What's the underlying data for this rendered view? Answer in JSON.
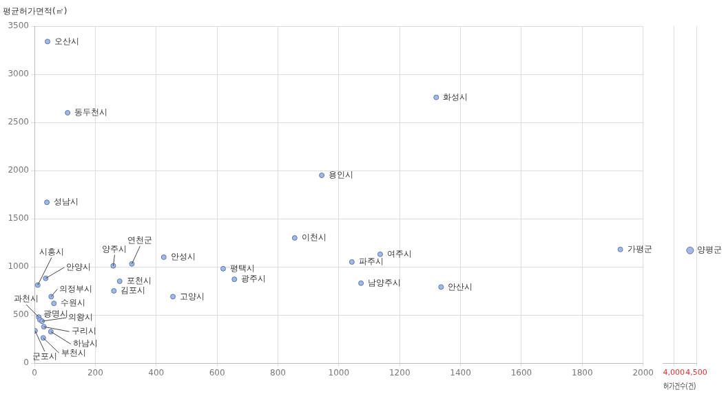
{
  "chart_data": [
    {
      "type": "scatter",
      "ylabel": "평균허가면적(㎡)",
      "xlim": [
        0,
        2000
      ],
      "xticks": [
        0,
        200,
        400,
        600,
        800,
        1000,
        1200,
        1400,
        1600,
        1800,
        2000
      ],
      "ylim": [
        0,
        3500
      ],
      "yticks": [
        0,
        500,
        1000,
        1500,
        2000,
        2500,
        3000,
        3500
      ],
      "grid": true,
      "legend": false,
      "marker": "circle",
      "series": [
        {
          "color": "#a3b8e0",
          "x": [
            43,
            109,
            41,
            944,
            1320,
            855,
            1136,
            1043,
            1073,
            1336,
            1925,
            620,
            657,
            425,
            455,
            259,
            320,
            280,
            261,
            11,
            37,
            55,
            64,
            14,
            18,
            25,
            31,
            54,
            29,
            2
          ],
          "values": [
            3340,
            2600,
            1670,
            1950,
            2760,
            1300,
            1130,
            1050,
            830,
            790,
            1180,
            980,
            870,
            1100,
            690,
            1010,
            1030,
            850,
            750,
            810,
            880,
            690,
            620,
            478,
            450,
            435,
            377,
            326,
            261,
            335
          ]
        }
      ],
      "annotations": [
        {
          "text": "오산시",
          "x": 43,
          "y": 3340
        },
        {
          "text": "동두천시",
          "x": 109,
          "y": 2600
        },
        {
          "text": "성남시",
          "x": 41,
          "y": 1670
        },
        {
          "text": "용인시",
          "x": 944,
          "y": 1950
        },
        {
          "text": "화성시",
          "x": 1320,
          "y": 2760
        },
        {
          "text": "이천시",
          "x": 855,
          "y": 1300
        },
        {
          "text": "여주시",
          "x": 1136,
          "y": 1130
        },
        {
          "text": "파주시",
          "x": 1043,
          "y": 1050
        },
        {
          "text": "남양주시",
          "x": 1073,
          "y": 830
        },
        {
          "text": "안산시",
          "x": 1336,
          "y": 790
        },
        {
          "text": "가평군",
          "x": 1925,
          "y": 1180
        },
        {
          "text": "평택시",
          "x": 620,
          "y": 980
        },
        {
          "text": "광주시",
          "x": 657,
          "y": 870
        },
        {
          "text": "안성시",
          "x": 425,
          "y": 1100
        },
        {
          "text": "고양시",
          "x": 455,
          "y": 690
        },
        {
          "text": "양주시",
          "x": 259,
          "y": 1010
        },
        {
          "text": "연천군",
          "x": 320,
          "y": 1030
        },
        {
          "text": "포천시",
          "x": 280,
          "y": 850
        },
        {
          "text": "김포시",
          "x": 261,
          "y": 750
        },
        {
          "text": "시흥시",
          "x": 11,
          "y": 810
        },
        {
          "text": "안양시",
          "x": 37,
          "y": 880
        },
        {
          "text": "의정부시",
          "x": 55,
          "y": 690
        },
        {
          "text": "수원시",
          "x": 64,
          "y": 620
        },
        {
          "text": "과천시",
          "x": 14,
          "y": 478
        },
        {
          "text": "광명시",
          "x": 18,
          "y": 450
        },
        {
          "text": "의왕시",
          "x": 25,
          "y": 435
        },
        {
          "text": "구리시",
          "x": 31,
          "y": 377
        },
        {
          "text": "하남시",
          "x": 54,
          "y": 326
        },
        {
          "text": "부천시",
          "x": 29,
          "y": 261
        },
        {
          "text": "군포시",
          "x": 2,
          "y": 335
        }
      ]
    },
    {
      "type": "scatter",
      "xlabel": "허가건수(건)",
      "xlim": [
        3750,
        4500
      ],
      "xticks": [
        {
          "value": 4000,
          "label": "4,000"
        },
        {
          "value": 4500,
          "label": "4,500"
        }
      ],
      "ylim": [
        0,
        3500
      ],
      "yticks": [
        0,
        500,
        1000,
        1500,
        2000,
        2500,
        3000,
        3500
      ],
      "tick_labels": "x",
      "grid": "x",
      "legend": false,
      "marker": "circle",
      "series": [
        {
          "color": "#a3b8e0",
          "x": [
            4360
          ],
          "values": [
            1170
          ]
        }
      ],
      "annotations": [
        {
          "text": "양평군",
          "x": 4360,
          "y": 1170
        }
      ]
    }
  ]
}
